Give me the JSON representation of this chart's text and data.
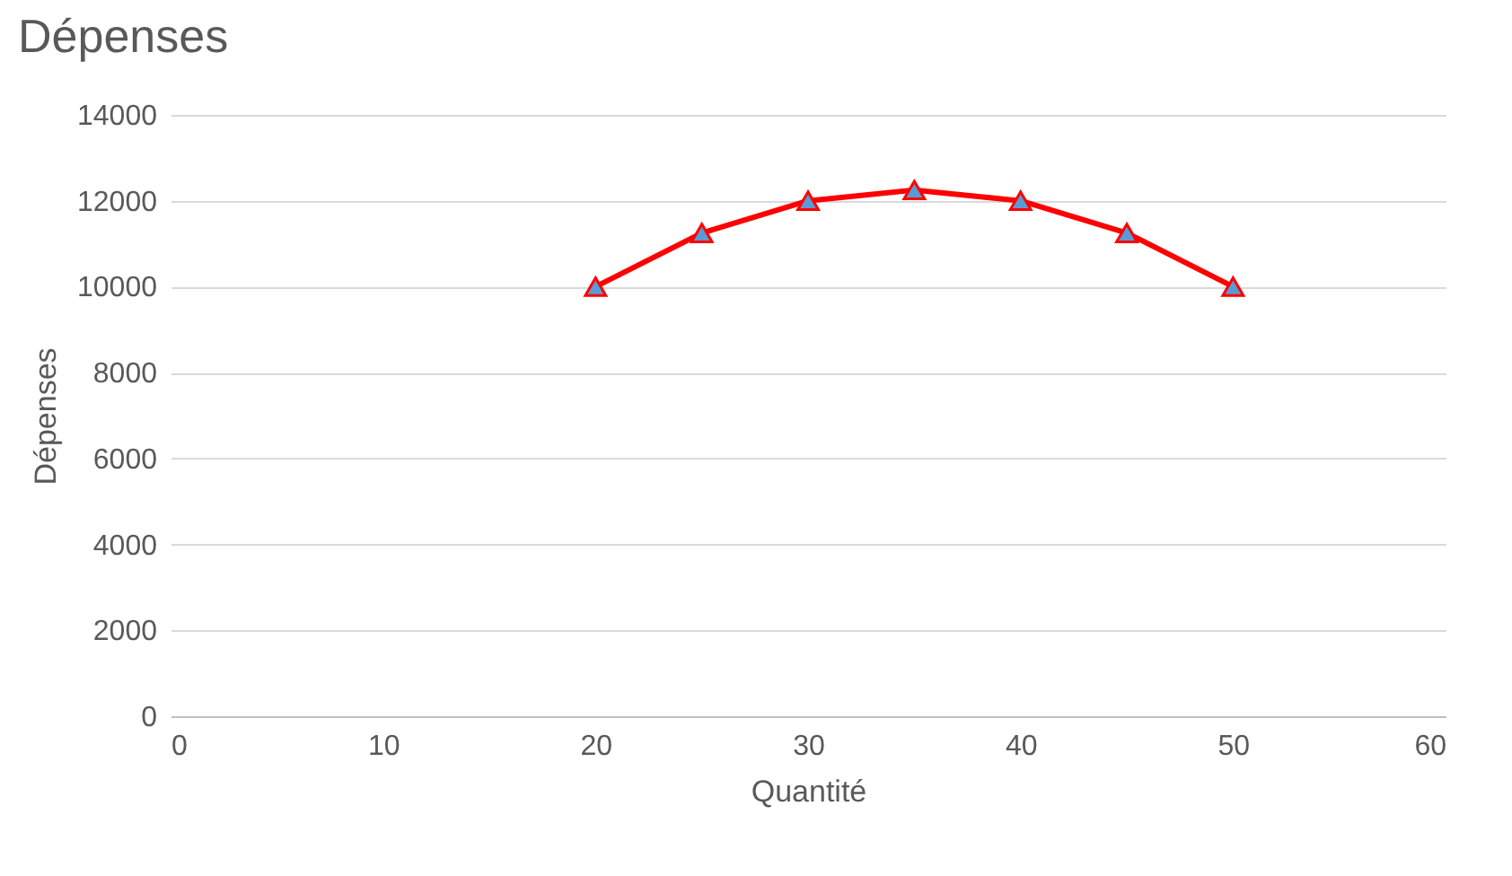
{
  "chart_data": {
    "type": "line",
    "title": "Dépenses",
    "xlabel": "Quantité",
    "ylabel": "Dépenses",
    "x": [
      20,
      25,
      30,
      35,
      40,
      45,
      50
    ],
    "series": [
      {
        "color": "#ff0000",
        "colors": [
          "#5b9bd5",
          "#5b9bd5",
          "#5b9bd5",
          "#5b9bd5",
          "#5b9bd5",
          "#5b9bd5",
          "#5b9bd5"
        ],
        "values": [
          10000,
          11250,
          12000,
          12250,
          12000,
          11250,
          10000
        ]
      }
    ],
    "xlim": [
      0,
      60
    ],
    "xticks": [
      0,
      10,
      20,
      30,
      40,
      50,
      60
    ],
    "ylim": [
      0,
      14000
    ],
    "yticks": [
      0,
      2000,
      4000,
      6000,
      8000,
      10000,
      12000,
      14000
    ],
    "grid": "y",
    "marker": "triangle",
    "line_style": "solid"
  }
}
